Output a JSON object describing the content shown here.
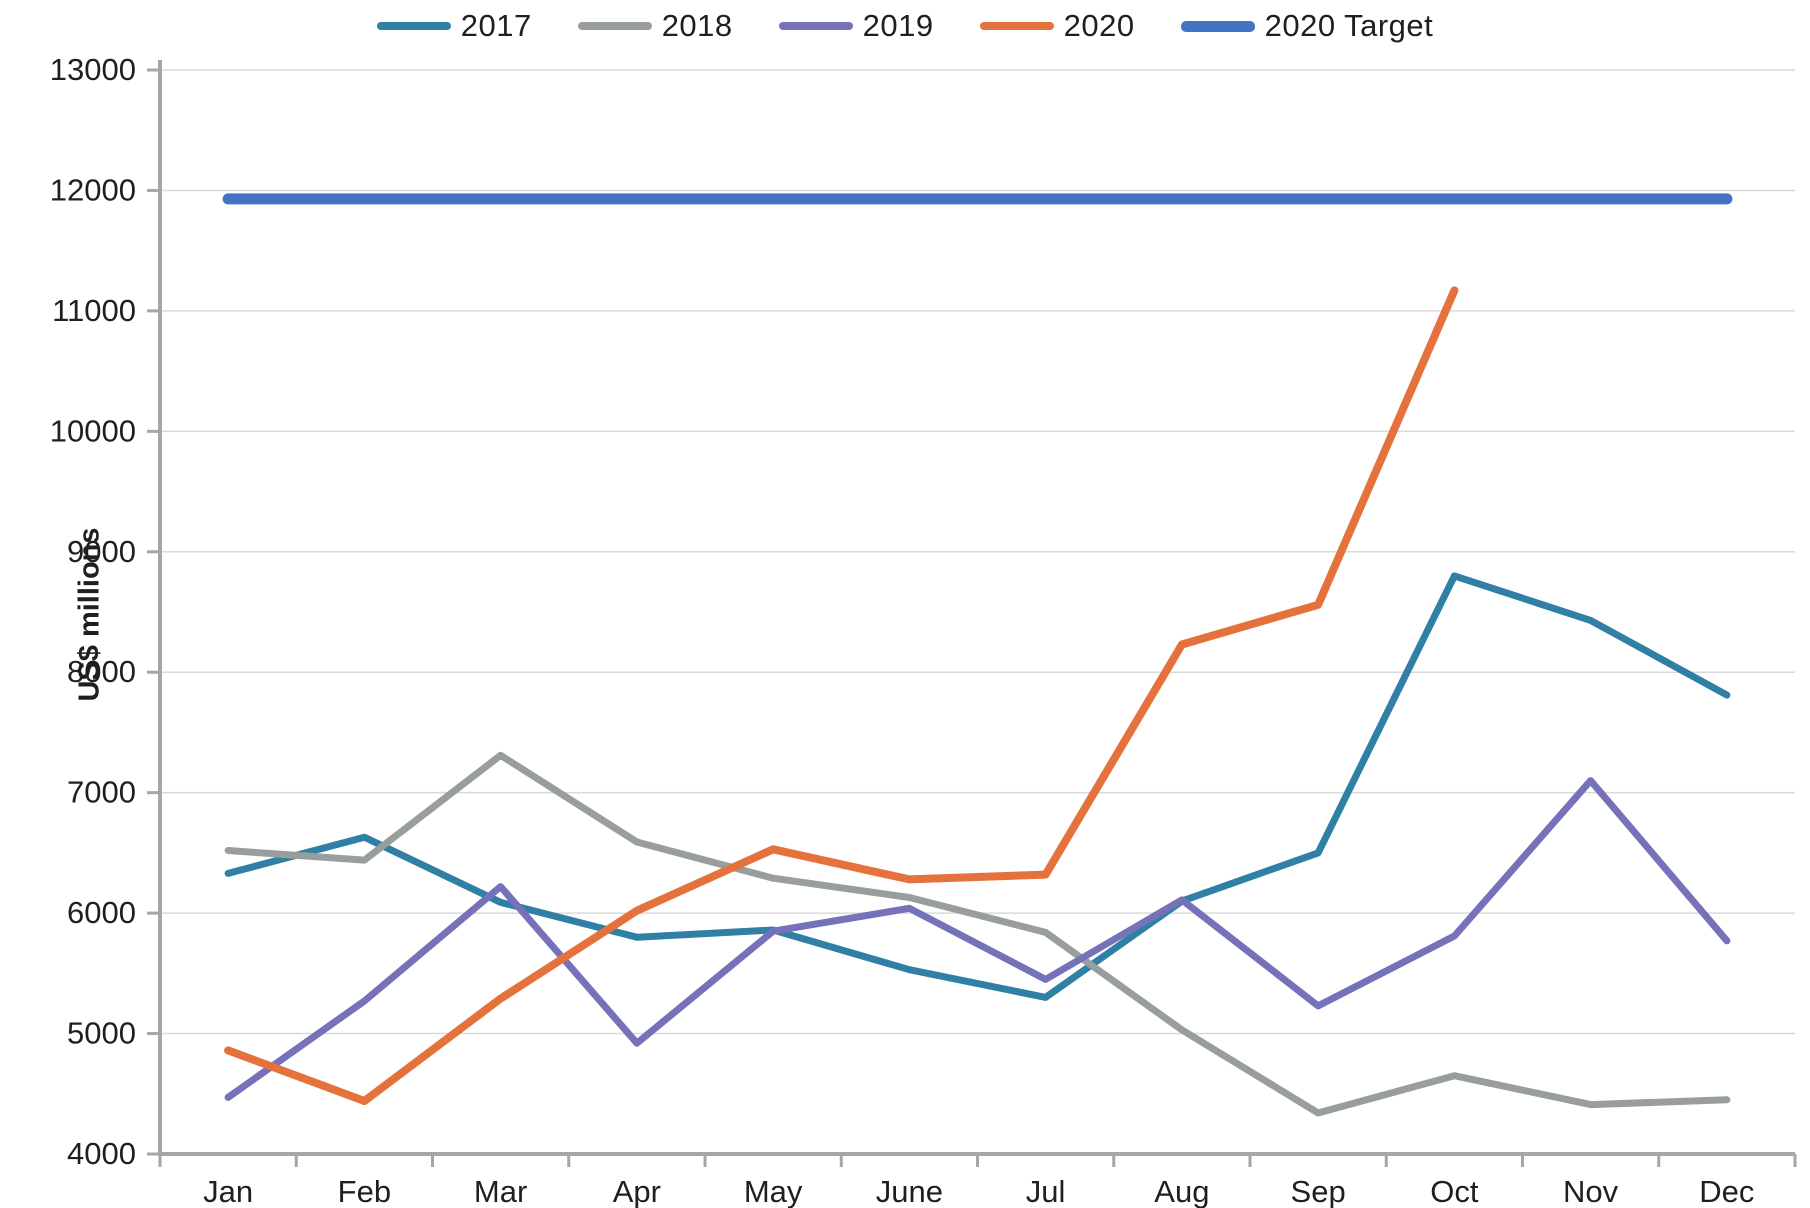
{
  "chart_data": {
    "type": "line",
    "title": "",
    "xlabel": "",
    "ylabel": "US$ millions",
    "ylim": [
      4000,
      13000
    ],
    "ytick_step": 1000,
    "grid": "horizontal",
    "legend_position": "top-center",
    "text_color": "#1f1f1f",
    "axis_color": "#a6a6a6",
    "gridline_color": "#d9d9d9",
    "categories": [
      "Jan",
      "Feb",
      "Mar",
      "Apr",
      "May",
      "June",
      "Jul",
      "Aug",
      "Sep",
      "Oct",
      "Nov",
      "Dec"
    ],
    "series": [
      {
        "name": "2017",
        "color": "#3080A5",
        "width": 7,
        "values": [
          6330,
          6630,
          6090,
          5800,
          5860,
          5530,
          5300,
          6100,
          6500,
          8800,
          8430,
          7810
        ]
      },
      {
        "name": "2018",
        "color": "#989E9B",
        "width": 7,
        "values": [
          6520,
          6440,
          7310,
          6590,
          6290,
          6130,
          5840,
          5030,
          4340,
          4650,
          4410,
          4450
        ]
      },
      {
        "name": "2019",
        "color": "#7672B9",
        "width": 7,
        "values": [
          4470,
          5270,
          6220,
          4920,
          5850,
          6040,
          5450,
          6110,
          5230,
          5810,
          7100,
          5770
        ]
      },
      {
        "name": "2020",
        "color": "#E5713C",
        "width": 8,
        "values": [
          4860,
          4440,
          5290,
          6020,
          6530,
          6280,
          6320,
          8230,
          8560,
          11170,
          null,
          null
        ]
      },
      {
        "name": "2020 Target",
        "color": "#4472C4",
        "width": 11,
        "values": [
          11930,
          11930,
          11930,
          11930,
          11930,
          11930,
          11930,
          11930,
          11930,
          11930,
          11930,
          11930
        ]
      }
    ]
  }
}
